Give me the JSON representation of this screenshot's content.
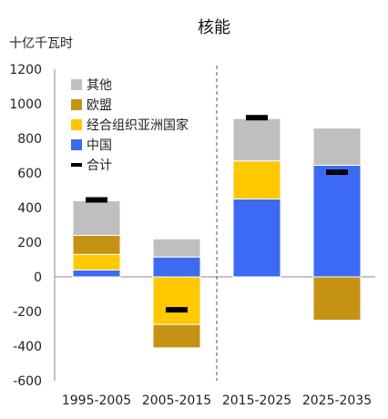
{
  "chart_data": {
    "type": "bar",
    "title": "核能",
    "ylabel": "十亿千瓦时",
    "xlabel": "",
    "categories": [
      "1995-2005",
      "2005-2015",
      "2015-2025",
      "2025-2035"
    ],
    "ylim": [
      -600,
      1200
    ],
    "yticks": [
      1200,
      1000,
      800,
      600,
      400,
      200,
      0,
      -200,
      -400,
      -600
    ],
    "stacked": true,
    "divider_between_categories": [
      1,
      2
    ],
    "series": [
      {
        "name": "中国",
        "color": "#3D6AF2",
        "values": [
          40,
          115,
          450,
          645
        ]
      },
      {
        "name": "经合组织亚洲国家",
        "color": "#FFC800",
        "values": [
          90,
          -275,
          220,
          0
        ]
      },
      {
        "name": "欧盟",
        "color": "#C69214",
        "values": [
          110,
          -135,
          0,
          -250
        ]
      },
      {
        "name": "其他",
        "color": "#BFBFBF",
        "values": [
          200,
          105,
          245,
          215
        ]
      }
    ],
    "total": {
      "name": "合计",
      "color": "#000000",
      "values": [
        445,
        -190,
        920,
        605
      ]
    },
    "legend": {
      "position": "top-left",
      "order": [
        "其他",
        "欧盟",
        "经合组织亚洲国家",
        "中国",
        "合计"
      ]
    }
  }
}
